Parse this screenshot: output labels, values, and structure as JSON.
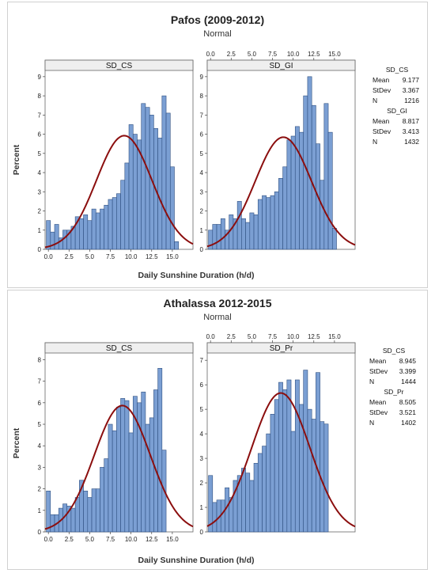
{
  "panels": [
    {
      "title": "Pafos (2009-2012)",
      "subtitle": "Normal",
      "ylabel": "Percent",
      "xlabel": "Daily Sunshine Duration (h/d)",
      "x_ticks": [
        "0.0",
        "2.5",
        "5.0",
        "7.5",
        "10.0",
        "12.5",
        "15.0"
      ],
      "legend": [
        {
          "name": "SD_CS",
          "mean_label": "Mean",
          "mean": "9.177",
          "sd_label": "StDev",
          "sd": "3.367",
          "n_label": "N",
          "n": "1216"
        },
        {
          "name": "SD_GI",
          "mean_label": "Mean",
          "mean": "8.817",
          "sd_label": "StDev",
          "sd": "3.413",
          "n_label": "N",
          "n": "1432"
        }
      ]
    },
    {
      "title": "Athalassa 2012-2015",
      "subtitle": "Normal",
      "ylabel": "Percent",
      "xlabel": "Daily Sunshine Duration (h/d)",
      "x_ticks": [
        "0.0",
        "2.5",
        "5.0",
        "7.5",
        "10.0",
        "12.5",
        "15.0"
      ],
      "legend": [
        {
          "name": "SD_CS",
          "mean_label": "Mean",
          "mean": "8.945",
          "sd_label": "StDev",
          "sd": "3.399",
          "n_label": "N",
          "n": "1444"
        },
        {
          "name": "SD_Pr",
          "mean_label": "Mean",
          "mean": "8.505",
          "sd_label": "StDev",
          "sd": "3.521",
          "n_label": "N",
          "n": "1402"
        }
      ]
    }
  ],
  "chart_data": [
    {
      "type": "bar",
      "panel": 0,
      "title": "SD_CS",
      "xlim": [
        -0.4,
        17.5
      ],
      "ylim": [
        0,
        9.2
      ],
      "y_ticks": [
        0,
        1,
        2,
        3,
        4,
        5,
        6,
        7,
        8,
        9
      ],
      "bin_width": 0.5,
      "bin_start": -0.25,
      "values": [
        1.5,
        0.9,
        1.3,
        0.6,
        1.0,
        1.0,
        1.2,
        1.7,
        1.6,
        1.8,
        1.5,
        2.1,
        1.9,
        2.1,
        2.3,
        2.6,
        2.7,
        2.9,
        3.6,
        4.5,
        6.5,
        6.0,
        5.7,
        7.6,
        7.4,
        7.0,
        6.3,
        5.8,
        8.0,
        7.1,
        4.3,
        0.4
      ],
      "normal_fit": {
        "mean": 9.177,
        "sd": 3.367
      },
      "colors": {
        "bar": "#7b9fd3",
        "edge": "#2e4f80",
        "fit": "#8b0e0e"
      }
    },
    {
      "type": "bar",
      "panel": 0,
      "title": "SD_GI",
      "xlim": [
        -0.4,
        17.5
      ],
      "ylim": [
        0,
        9.2
      ],
      "y_ticks": [
        0,
        1,
        2,
        3,
        4,
        5,
        6,
        7,
        8,
        9
      ],
      "bin_width": 0.5,
      "bin_start": -0.25,
      "values": [
        1.0,
        1.3,
        1.3,
        1.6,
        1.0,
        1.8,
        1.6,
        2.5,
        1.6,
        1.4,
        1.9,
        1.8,
        2.6,
        2.8,
        2.7,
        2.8,
        3.0,
        3.7,
        4.3,
        5.7,
        5.9,
        6.4,
        6.1,
        8.0,
        9.0,
        7.5,
        5.5,
        3.6,
        7.6,
        6.1,
        1.1
      ],
      "normal_fit": {
        "mean": 8.817,
        "sd": 3.413
      },
      "colors": {
        "bar": "#7b9fd3",
        "edge": "#2e4f80",
        "fit": "#8b0e0e"
      }
    },
    {
      "type": "bar",
      "panel": 1,
      "title": "SD_CS",
      "xlim": [
        -0.4,
        17.5
      ],
      "ylim": [
        0,
        8.2
      ],
      "y_ticks": [
        0,
        1,
        2,
        3,
        4,
        5,
        6,
        7,
        8
      ],
      "bin_width": 0.5,
      "bin_start": -0.25,
      "values": [
        1.9,
        0.8,
        0.8,
        1.1,
        1.3,
        1.2,
        1.1,
        1.6,
        2.4,
        1.9,
        1.6,
        2.0,
        2.0,
        3.0,
        3.4,
        5.0,
        4.7,
        5.8,
        6.2,
        6.1,
        4.6,
        6.3,
        6.0,
        6.5,
        5.0,
        5.3,
        6.6,
        7.6,
        3.8
      ],
      "normal_fit": {
        "mean": 8.945,
        "sd": 3.399
      },
      "colors": {
        "bar": "#7b9fd3",
        "edge": "#2e4f80",
        "fit": "#8b0e0e"
      }
    },
    {
      "type": "bar",
      "panel": 1,
      "title": "SD_Pr",
      "xlim": [
        -0.4,
        17.5
      ],
      "ylim": [
        0,
        7.2
      ],
      "y_ticks": [
        0,
        1,
        2,
        3,
        4,
        5,
        6,
        7
      ],
      "bin_width": 0.5,
      "bin_start": -0.25,
      "values": [
        2.3,
        1.2,
        1.3,
        1.3,
        1.8,
        1.4,
        2.1,
        2.3,
        2.6,
        2.4,
        2.1,
        2.8,
        3.2,
        3.5,
        4.0,
        4.8,
        5.4,
        6.1,
        5.8,
        6.2,
        4.1,
        6.2,
        5.2,
        6.6,
        5.0,
        4.6,
        6.5,
        4.5,
        4.4
      ],
      "normal_fit": {
        "mean": 8.505,
        "sd": 3.521
      },
      "colors": {
        "bar": "#7b9fd3",
        "edge": "#2e4f80",
        "fit": "#8b0e0e"
      }
    }
  ]
}
